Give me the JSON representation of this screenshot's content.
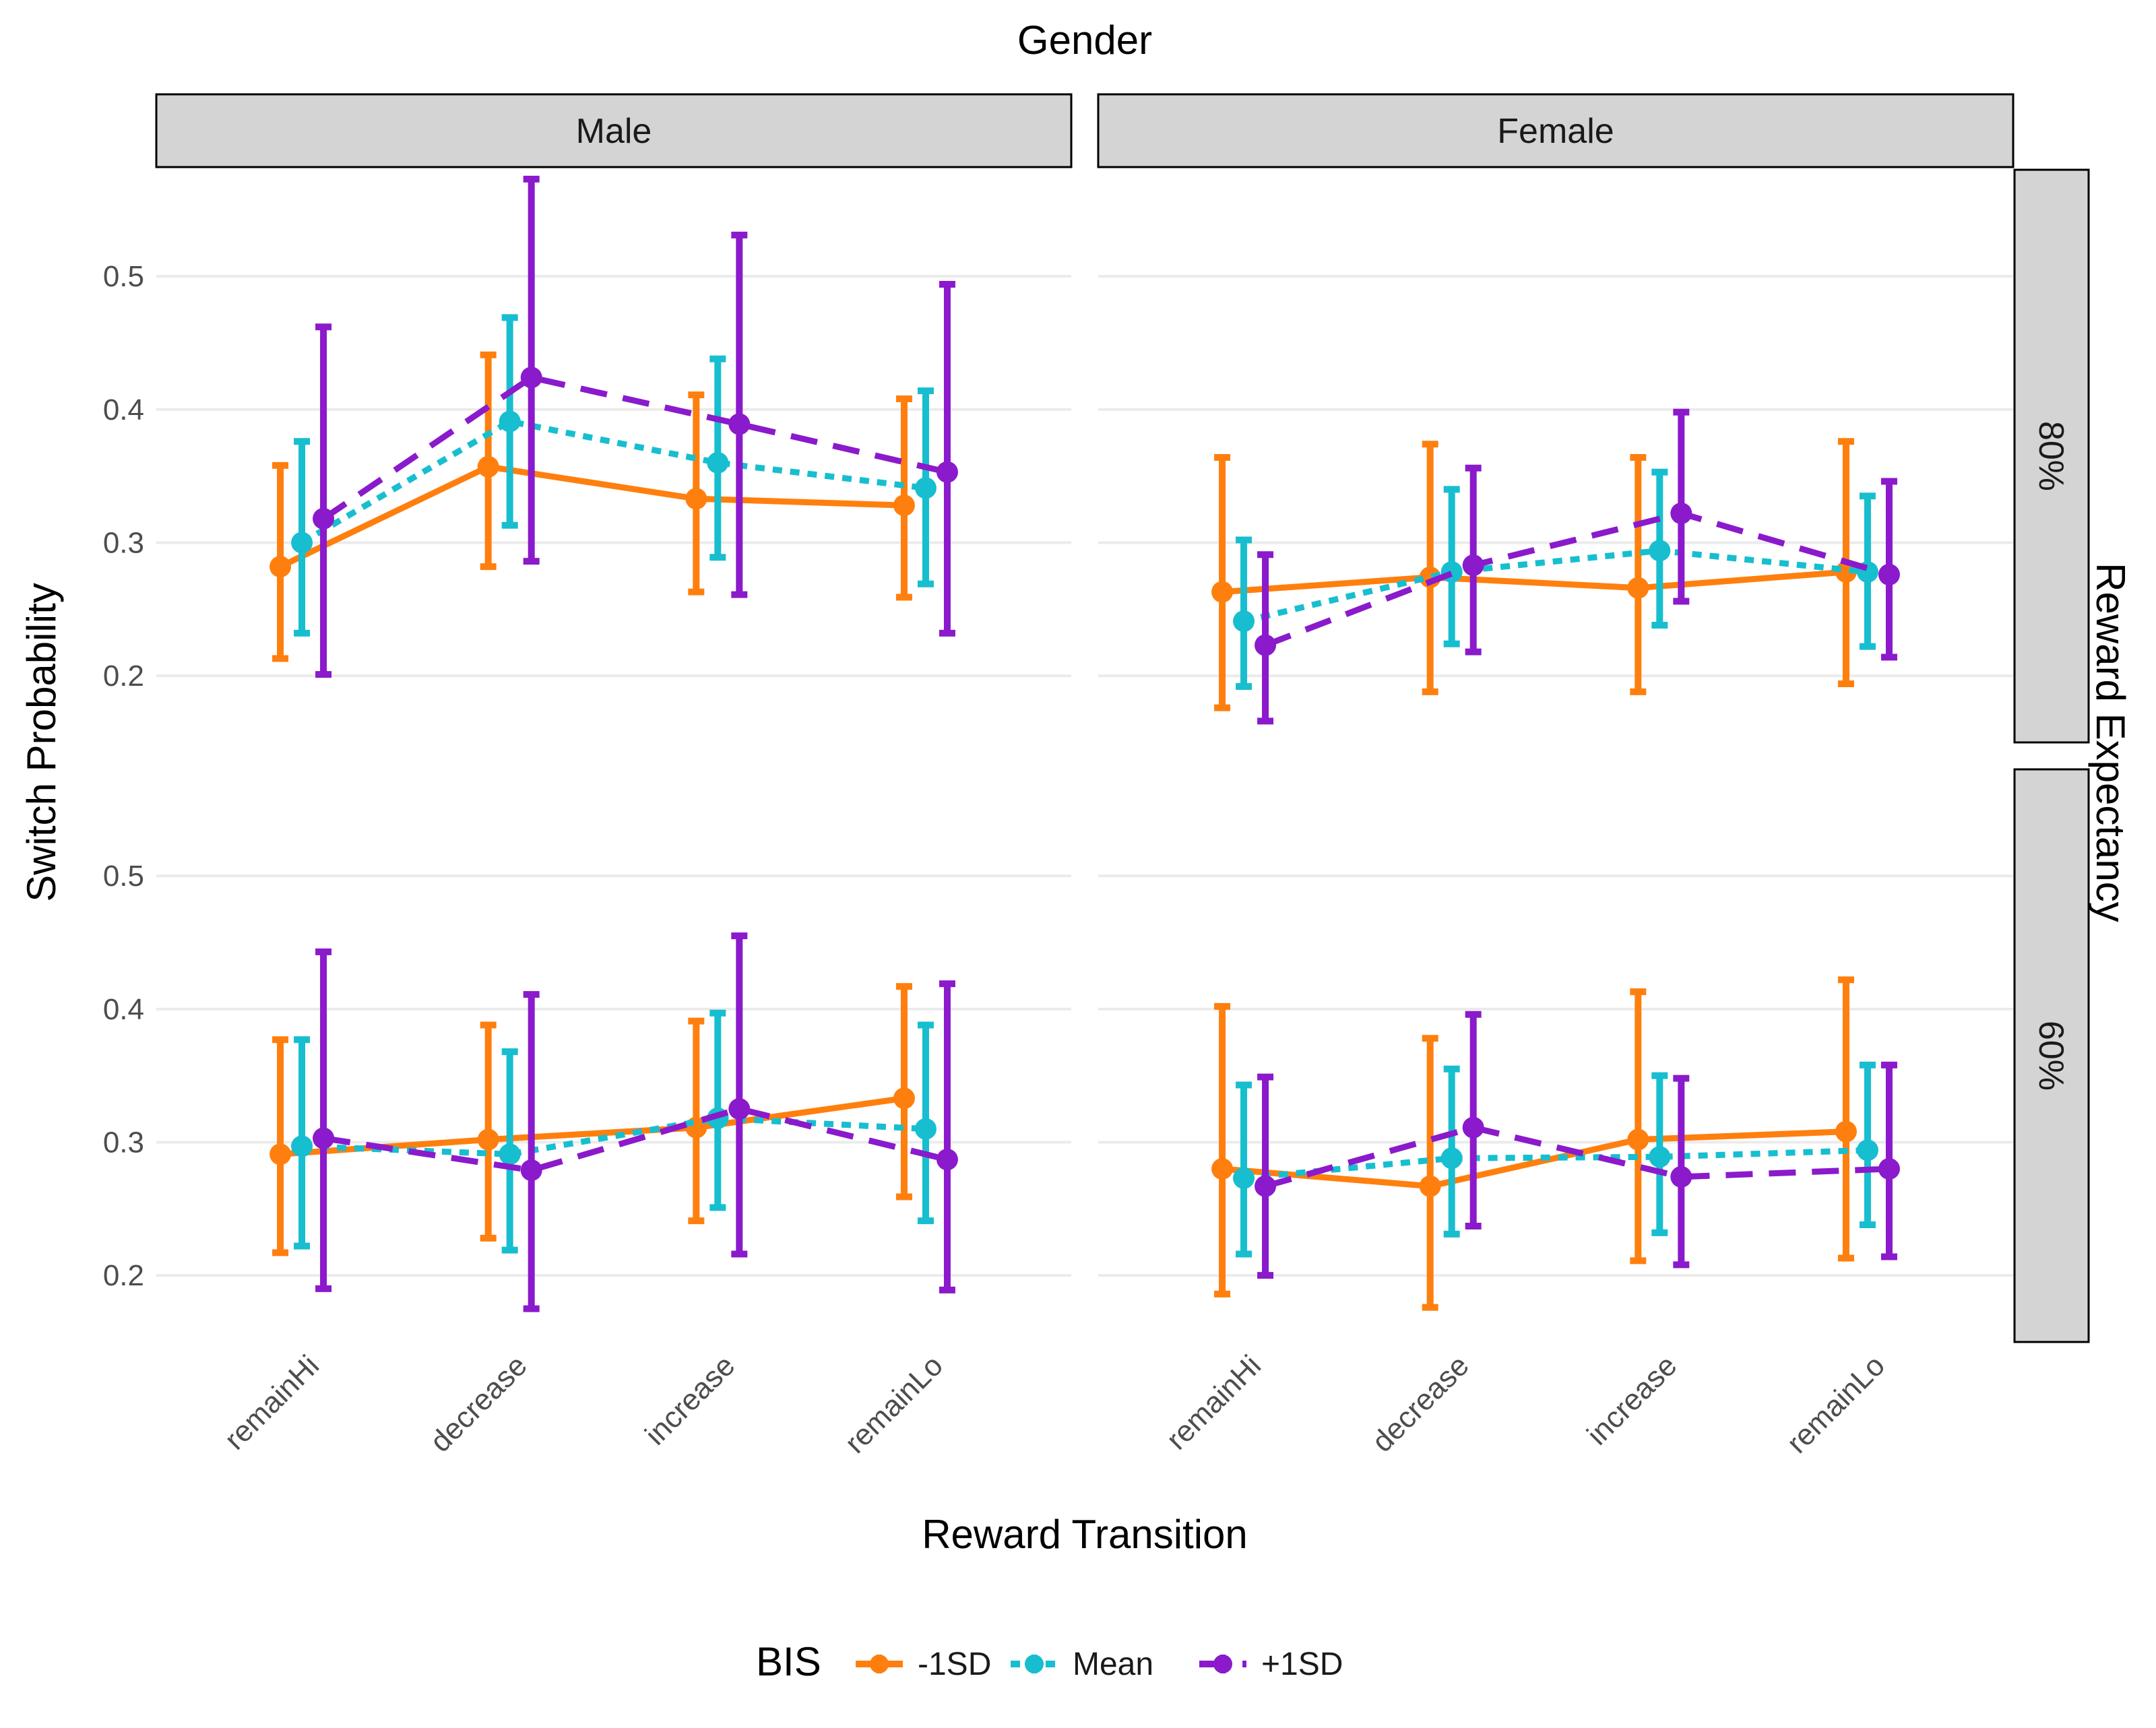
{
  "chart_data": {
    "type": "line",
    "facet_col_title": "Gender",
    "facet_row_title": "Reward Expectancy",
    "facet_cols": [
      "Male",
      "Female"
    ],
    "facet_rows": [
      "80%",
      "60%"
    ],
    "categories": [
      "remainHi",
      "decrease",
      "increase",
      "remainLo"
    ],
    "xlabel": "Reward Transition",
    "ylabel": "Switch Probability",
    "ylim": [
      0.15,
      0.58
    ],
    "yticks": [
      0.2,
      0.3,
      0.4,
      0.5
    ],
    "ytick_labels": [
      "0.2",
      "0.3",
      "0.4",
      "0.5"
    ],
    "grid": true,
    "legend": {
      "title": "BIS",
      "position": "bottom",
      "entries": [
        "-1SD",
        "Mean",
        "+1SD"
      ]
    },
    "series_style": [
      {
        "name": "-1SD",
        "color": "#FF7F0E",
        "dash": "solid"
      },
      {
        "name": "Mean",
        "color": "#17BECF",
        "dash": "dotted"
      },
      {
        "name": "+1SD",
        "color": "#8A1ACB",
        "dash": "dashed"
      }
    ],
    "panels": [
      {
        "row": "80%",
        "col": "Male",
        "series": [
          {
            "name": "-1SD",
            "values": [
              0.282,
              0.357,
              0.333,
              0.328
            ],
            "lower": [
              0.213,
              0.282,
              0.263,
              0.259
            ],
            "upper": [
              0.358,
              0.441,
              0.411,
              0.408
            ]
          },
          {
            "name": "Mean",
            "values": [
              0.3,
              0.391,
              0.36,
              0.341
            ],
            "lower": [
              0.232,
              0.313,
              0.289,
              0.269
            ],
            "upper": [
              0.376,
              0.469,
              0.438,
              0.414
            ]
          },
          {
            "name": "+1SD",
            "values": [
              0.318,
              0.424,
              0.389,
              0.353
            ],
            "lower": [
              0.201,
              0.286,
              0.261,
              0.232
            ],
            "upper": [
              0.462,
              0.573,
              0.531,
              0.494
            ]
          }
        ]
      },
      {
        "row": "80%",
        "col": "Female",
        "series": [
          {
            "name": "-1SD",
            "values": [
              0.263,
              0.274,
              0.266,
              0.278
            ],
            "lower": [
              0.176,
              0.188,
              0.188,
              0.194
            ],
            "upper": [
              0.364,
              0.374,
              0.364,
              0.376
            ]
          },
          {
            "name": "Mean",
            "values": [
              0.241,
              0.278,
              0.294,
              0.278
            ],
            "lower": [
              0.192,
              0.224,
              0.238,
              0.222
            ],
            "upper": [
              0.302,
              0.34,
              0.353,
              0.335
            ]
          },
          {
            "name": "+1SD",
            "values": [
              0.223,
              0.283,
              0.322,
              0.276
            ],
            "lower": [
              0.166,
              0.218,
              0.256,
              0.214
            ],
            "upper": [
              0.291,
              0.356,
              0.398,
              0.346
            ]
          }
        ]
      },
      {
        "row": "60%",
        "col": "Male",
        "series": [
          {
            "name": "-1SD",
            "values": [
              0.291,
              0.302,
              0.311,
              0.333
            ],
            "lower": [
              0.217,
              0.228,
              0.241,
              0.259
            ],
            "upper": [
              0.377,
              0.388,
              0.391,
              0.417
            ]
          },
          {
            "name": "Mean",
            "values": [
              0.297,
              0.291,
              0.318,
              0.31
            ],
            "lower": [
              0.222,
              0.219,
              0.251,
              0.241
            ],
            "upper": [
              0.377,
              0.368,
              0.397,
              0.388
            ]
          },
          {
            "name": "+1SD",
            "values": [
              0.303,
              0.279,
              0.325,
              0.287
            ],
            "lower": [
              0.19,
              0.175,
              0.216,
              0.189
            ],
            "upper": [
              0.443,
              0.411,
              0.455,
              0.419
            ]
          }
        ]
      },
      {
        "row": "60%",
        "col": "Female",
        "series": [
          {
            "name": "-1SD",
            "values": [
              0.28,
              0.267,
              0.302,
              0.308
            ],
            "lower": [
              0.186,
              0.176,
              0.211,
              0.213
            ],
            "upper": [
              0.402,
              0.378,
              0.413,
              0.422
            ]
          },
          {
            "name": "Mean",
            "values": [
              0.273,
              0.288,
              0.289,
              0.294
            ],
            "lower": [
              0.216,
              0.231,
              0.232,
              0.238
            ],
            "upper": [
              0.343,
              0.355,
              0.35,
              0.358
            ]
          },
          {
            "name": "+1SD",
            "values": [
              0.267,
              0.311,
              0.274,
              0.28
            ],
            "lower": [
              0.2,
              0.237,
              0.208,
              0.214
            ],
            "upper": [
              0.349,
              0.396,
              0.348,
              0.358
            ]
          }
        ]
      }
    ]
  }
}
